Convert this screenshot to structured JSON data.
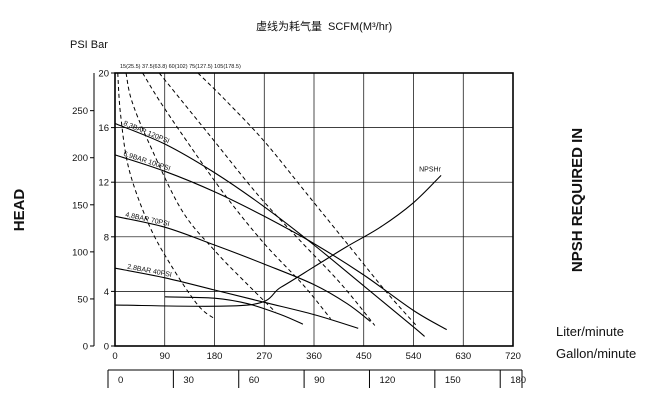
{
  "chart_data": {
    "type": "line",
    "title": "虚线为耗气量",
    "title_unit": "SCFM(M³/hr)",
    "unit_label": "PSI Bar",
    "ylabel_left": "HEAD",
    "ylabel_right": "NPSH REQUIRED IN",
    "x_unit_label": "Liter/minute",
    "x2_unit_label": "Gallon/minute",
    "x_ticks": [
      "0",
      "90",
      "180",
      "270",
      "360",
      "450",
      "540",
      "630",
      "720"
    ],
    "x_range": [
      0,
      720
    ],
    "x2_ticks": [
      "0",
      "30",
      "60",
      "90",
      "120",
      "150",
      "180"
    ],
    "x2_range": [
      0,
      190
    ],
    "psi_ticks": [
      "0",
      "50",
      "100",
      "150",
      "200",
      "250"
    ],
    "psi_range": [
      0,
      290
    ],
    "bar_ticks": [
      "0",
      "4",
      "8",
      "12",
      "16",
      "20"
    ],
    "bar_range": [
      0,
      20
    ],
    "air_labels": "15(25.5) 37.5(63.8) 60(102) 75(127.5) 105(178.5)",
    "grid": true,
    "series": [
      {
        "name": "8.3BAR 120PSI",
        "style": "solid",
        "x": [
          0,
          90,
          180,
          270,
          360,
          450,
          540,
          560
        ],
        "y": [
          16.3,
          14.8,
          12.7,
          10.2,
          7.4,
          4.4,
          1.4,
          0.7
        ]
      },
      {
        "name": "6.9BAR 100PSI",
        "style": "solid",
        "x": [
          0,
          90,
          180,
          270,
          360,
          450,
          540,
          600
        ],
        "y": [
          14.0,
          12.8,
          11.3,
          9.5,
          7.5,
          5.2,
          2.6,
          1.2
        ]
      },
      {
        "name": "4.8BAR 70PSI",
        "style": "solid",
        "x": [
          0,
          90,
          180,
          270,
          360,
          420,
          462
        ],
        "y": [
          9.5,
          8.7,
          7.4,
          6.0,
          4.5,
          3.1,
          1.8
        ]
      },
      {
        "name": "2.8BAR 40PSI",
        "style": "solid",
        "x": [
          0,
          90,
          180,
          270,
          360,
          440
        ],
        "y": [
          5.7,
          5.0,
          4.1,
          3.2,
          2.3,
          1.3
        ]
      },
      {
        "name": "4.8BAR 70PSI lower",
        "style": "solid",
        "x": [
          90,
          180,
          240,
          300,
          340
        ],
        "y": [
          3.6,
          3.5,
          3.1,
          2.3,
          1.6
        ]
      },
      {
        "name": "NPSHr",
        "style": "solid",
        "x": [
          0,
          240,
          300,
          360,
          420,
          480,
          540,
          590
        ],
        "y": [
          3.0,
          3.0,
          4.3,
          5.8,
          7.3,
          8.7,
          10.5,
          12.5
        ]
      },
      {
        "name": "15(25.5)",
        "style": "dashed",
        "x": [
          5,
          10,
          25,
          60,
          100,
          150,
          180
        ],
        "y": [
          20,
          17.0,
          13.0,
          9.0,
          6.0,
          3.0,
          2.0
        ]
      },
      {
        "name": "37.5(63.8)",
        "style": "dashed",
        "x": [
          20,
          30,
          60,
          120,
          180,
          240,
          290
        ],
        "y": [
          20,
          18.0,
          15.0,
          10.0,
          7.0,
          4.5,
          2.5
        ]
      },
      {
        "name": "60(102)",
        "style": "dashed",
        "x": [
          50,
          80,
          130,
          200,
          270,
          340,
          390
        ],
        "y": [
          20,
          18.0,
          15.0,
          11.0,
          7.5,
          4.5,
          2.0
        ]
      },
      {
        "name": "75(127.5)",
        "style": "dashed",
        "x": [
          80,
          120,
          180,
          260,
          340,
          410,
          470
        ],
        "y": [
          20,
          18.0,
          15.0,
          11.0,
          7.5,
          4.5,
          1.5
        ]
      },
      {
        "name": "105(178.5)",
        "style": "dashed",
        "x": [
          150,
          200,
          270,
          350,
          430,
          490,
          545
        ],
        "y": [
          20,
          18.0,
          15.0,
          11.0,
          7.0,
          4.0,
          1.5
        ]
      }
    ]
  }
}
